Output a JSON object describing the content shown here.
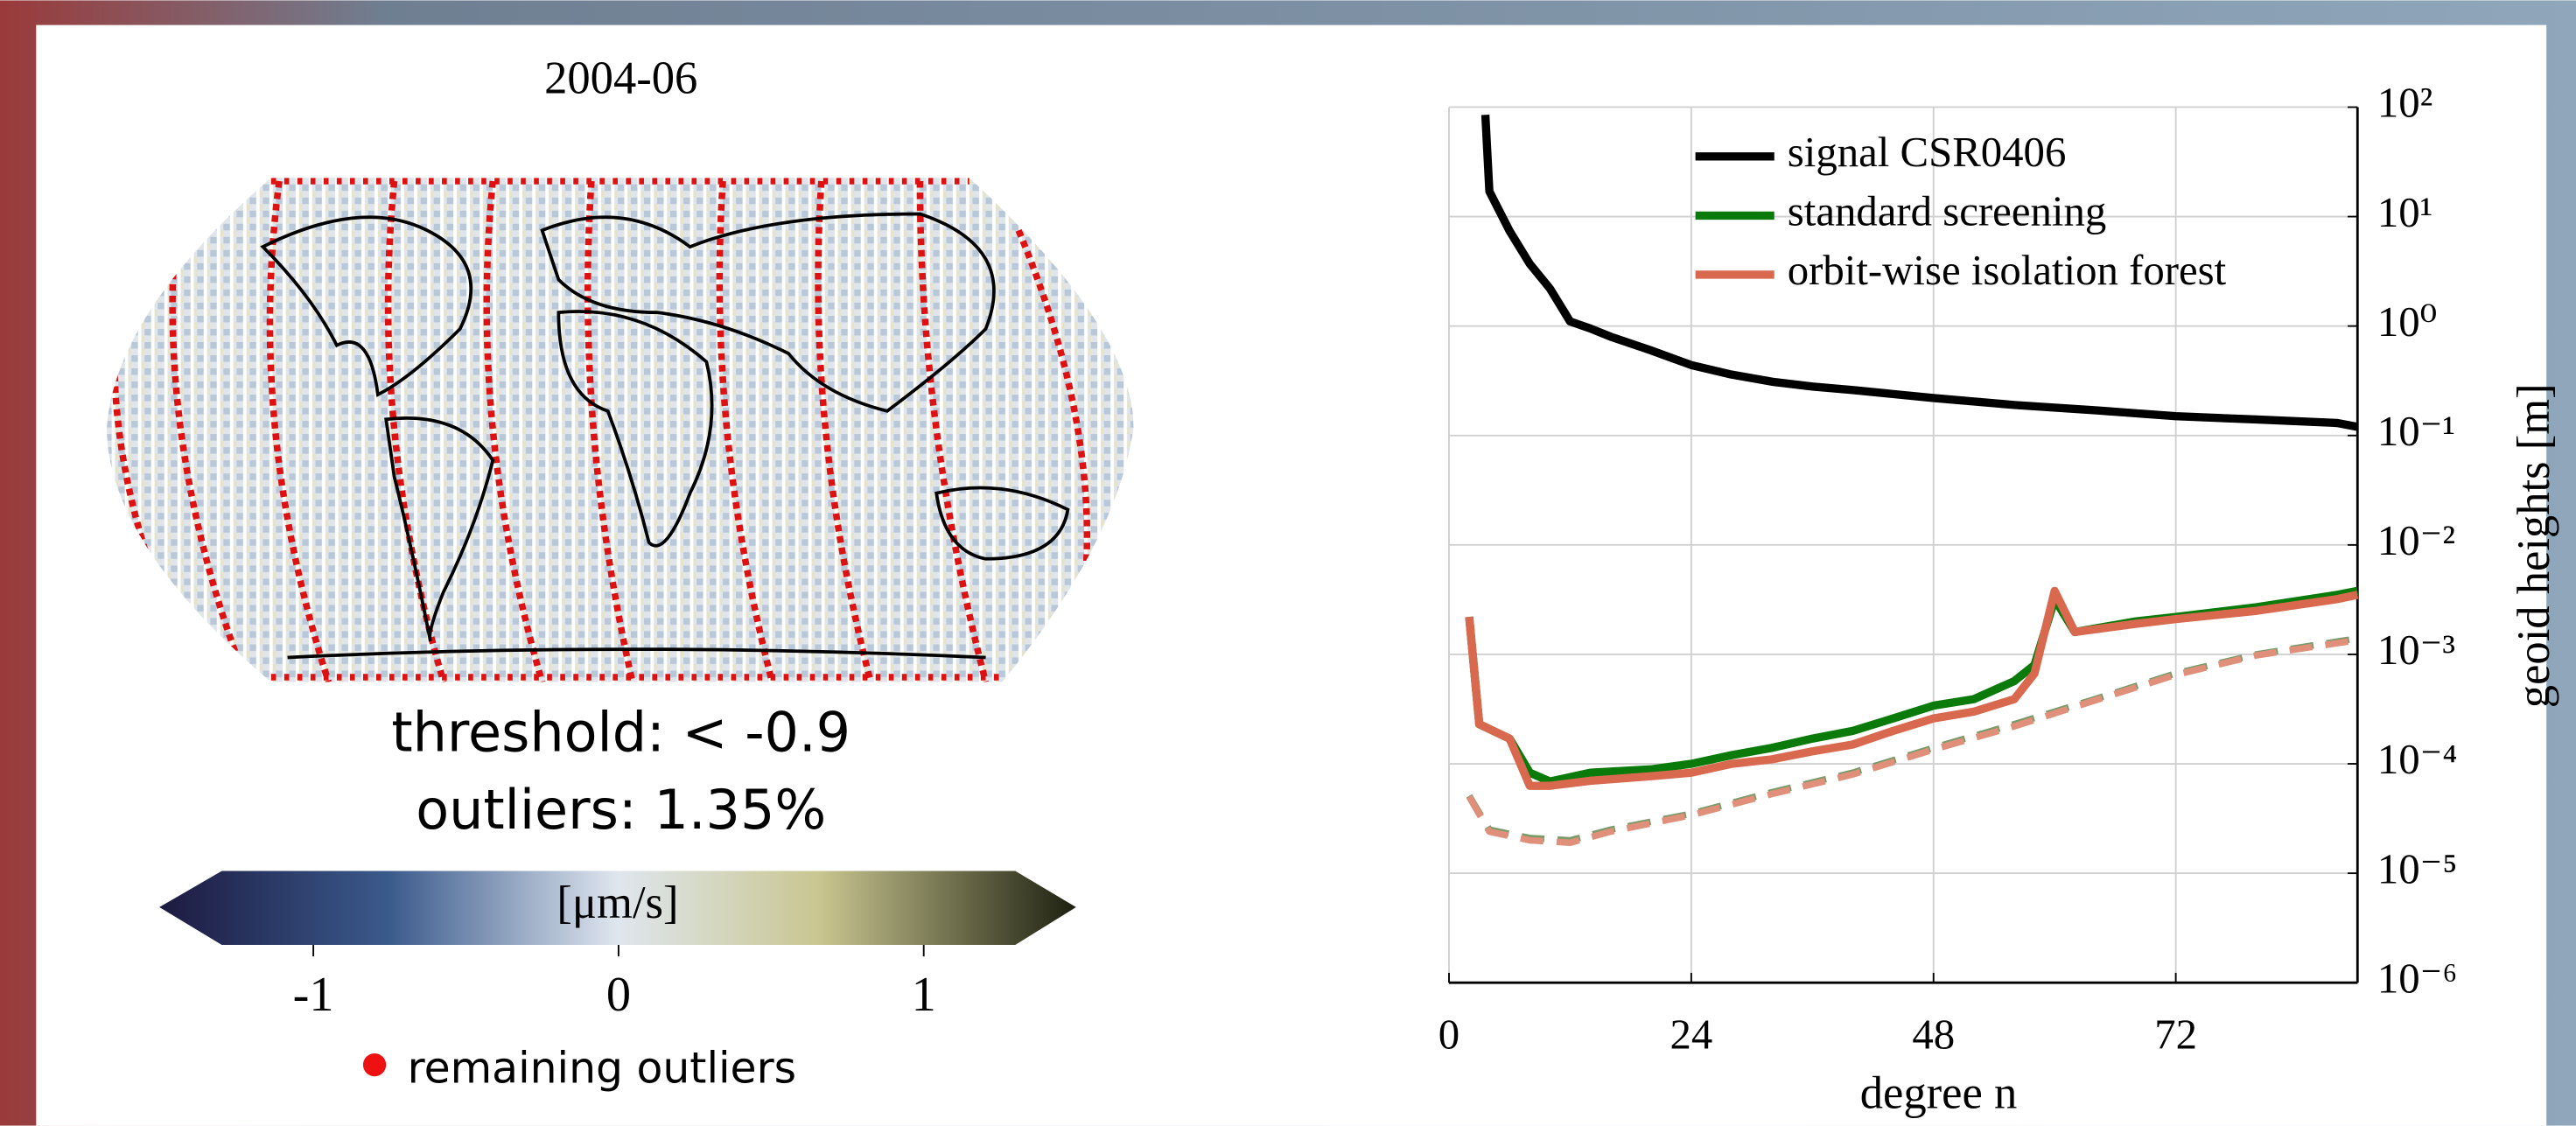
{
  "map": {
    "title": "2004-06",
    "threshold": "threshold: < -0.9",
    "outliers": "outliers: 1.35%",
    "colorbar_label": "[μm/s]",
    "clim": [
      -1.3,
      1.3
    ],
    "colorbar_ticks": [
      -1,
      0,
      1
    ],
    "legend": "remaining outliers"
  },
  "chart_data": {
    "type": "line",
    "xlabel": "degree n",
    "ylabel": "geoid heights [m]",
    "xlim": [
      0,
      90
    ],
    "xticks": [
      0,
      24,
      48,
      72
    ],
    "ylim": [
      1e-06,
      100
    ],
    "log_y": true,
    "yticks": [
      {
        "value": 1e-06,
        "label": "10⁻⁶"
      },
      {
        "value": 1e-05,
        "label": "10⁻⁵"
      },
      {
        "value": 0.0001,
        "label": "10⁻⁴"
      },
      {
        "value": 0.001,
        "label": "10⁻³"
      },
      {
        "value": 0.01,
        "label": "10⁻²"
      },
      {
        "value": 0.1,
        "label": "10⁻¹"
      },
      {
        "value": 1,
        "label": "10⁰"
      },
      {
        "value": 10,
        "label": "10¹"
      },
      {
        "value": 100,
        "label": "10²"
      }
    ],
    "grid": true,
    "legend": "upper right",
    "y_axis_side": "right",
    "series": [
      {
        "name": "signal CSR0406",
        "color": "#000000",
        "x": [
          3.6,
          4,
          6,
          8,
          10,
          12,
          14,
          16,
          20,
          24,
          28,
          32,
          36,
          40,
          48,
          56,
          64,
          72,
          80,
          88,
          90
        ],
        "values": [
          85,
          17,
          7.4,
          3.7,
          2.2,
          1.1,
          0.95,
          0.8,
          0.6,
          0.44,
          0.36,
          0.31,
          0.28,
          0.26,
          0.22,
          0.19,
          0.17,
          0.15,
          0.14,
          0.13,
          0.12
        ]
      },
      {
        "name": "standard screening",
        "color": "#0a7a0a",
        "x": [
          2,
          3,
          6,
          8,
          10,
          14,
          20,
          24,
          28,
          32,
          36,
          40,
          44,
          48,
          52,
          56,
          58,
          60,
          62,
          68,
          72,
          80,
          88,
          90
        ],
        "values": [
          0.0022,
          0.00023,
          0.00017,
          8.3e-05,
          6.9e-05,
          8.3e-05,
          8.9e-05,
          0.0001,
          0.00012,
          0.00014,
          0.00017,
          0.0002,
          0.00026,
          0.00034,
          0.00039,
          0.00057,
          0.0008,
          0.0032,
          0.0016,
          0.002,
          0.0022,
          0.0027,
          0.0035,
          0.0038
        ]
      },
      {
        "name": "orbit-wise isolation forest",
        "color": "#d9694e",
        "x": [
          2,
          3,
          6,
          8,
          10,
          14,
          20,
          24,
          28,
          32,
          36,
          40,
          44,
          48,
          52,
          56,
          58,
          60,
          62,
          68,
          72,
          80,
          88,
          90
        ],
        "values": [
          0.0022,
          0.00023,
          0.00017,
          6.3e-05,
          6.3e-05,
          7e-05,
          7.7e-05,
          8.3e-05,
          0.0001,
          0.00011,
          0.00013,
          0.00015,
          0.0002,
          0.00026,
          0.0003,
          0.00039,
          0.00067,
          0.0038,
          0.0016,
          0.0019,
          0.0021,
          0.0025,
          0.0032,
          0.0035
        ]
      },
      {
        "color": "#7a9a6a",
        "dashed": true,
        "x": [
          2,
          4,
          8,
          12,
          16,
          24,
          32,
          40,
          48,
          56,
          64,
          72,
          80,
          90
        ],
        "values": [
          5.1e-05,
          2.5e-05,
          2.1e-05,
          2e-05,
          2.5e-05,
          3.5e-05,
          5.5e-05,
          8.3e-05,
          0.00014,
          0.00023,
          0.00039,
          0.00067,
          0.001,
          0.0014
        ]
      },
      {
        "color": "#e0907a",
        "dashed": true,
        "x": [
          2,
          4,
          8,
          12,
          16,
          24,
          32,
          40,
          48,
          56,
          64,
          72,
          80,
          90
        ],
        "values": [
          5e-05,
          2.4e-05,
          2e-05,
          1.9e-05,
          2.4e-05,
          3.4e-05,
          5.3e-05,
          8e-05,
          0.000135,
          0.00022,
          0.00038,
          0.00065,
          0.00098,
          0.00135
        ]
      }
    ]
  }
}
